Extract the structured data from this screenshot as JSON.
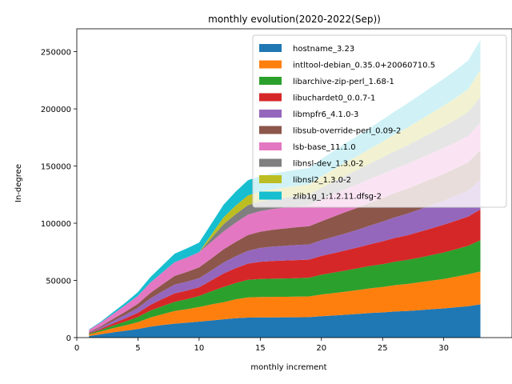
{
  "chart_data": {
    "type": "area",
    "stacked": true,
    "title": "monthly evolution(2020-2022(Sep))",
    "xlabel": "monthly increment",
    "ylabel": "In-degree",
    "xlim": [
      0,
      34.6
    ],
    "ylim": [
      0,
      270000
    ],
    "xticks": [
      0,
      5,
      10,
      15,
      20,
      25,
      30
    ],
    "yticks": [
      0,
      50000,
      100000,
      150000,
      200000,
      250000
    ],
    "grid": false,
    "legend_position": "top-right",
    "x": [
      1,
      2,
      3,
      4,
      5,
      6,
      7,
      8,
      9,
      10,
      11,
      12,
      13,
      14,
      15,
      16,
      17,
      18,
      19,
      20,
      21,
      22,
      23,
      24,
      25,
      26,
      27,
      28,
      29,
      30,
      31,
      32,
      33
    ],
    "series": [
      {
        "name": "hostname_3.23",
        "color": "#1f77b4",
        "values": [
          1400,
          3000,
          4600,
          6000,
          7500,
          9500,
          11000,
          12200,
          13000,
          14000,
          15000,
          16000,
          17000,
          17500,
          17700,
          17700,
          17800,
          17800,
          17900,
          18700,
          19300,
          20000,
          20700,
          21500,
          22000,
          22800,
          23300,
          24000,
          24800,
          25500,
          26500,
          27500,
          29000
        ]
      },
      {
        "name": "intltool-debian_0.35.0+20060710.5",
        "color": "#ff7f0e",
        "values": [
          1300,
          2500,
          3700,
          4800,
          6000,
          8000,
          9500,
          11000,
          11800,
          12700,
          14000,
          15000,
          16500,
          17700,
          17800,
          17900,
          17900,
          18000,
          18100,
          19000,
          19600,
          20200,
          20900,
          21600,
          22200,
          23000,
          23600,
          24300,
          25000,
          25800,
          26800,
          27800,
          28800
        ]
      },
      {
        "name": "libarchive-zip-perl_1.68-1",
        "color": "#2ca02c",
        "values": [
          700,
          1400,
          2400,
          3400,
          4500,
          6000,
          7000,
          8000,
          8800,
          9700,
          11500,
          13200,
          14300,
          15300,
          15700,
          15900,
          16000,
          16200,
          16400,
          17300,
          17900,
          18500,
          19100,
          19600,
          20000,
          20500,
          21000,
          21600,
          22300,
          23100,
          24000,
          25000,
          27300
        ]
      },
      {
        "name": "libuchardet0_0.0.7-1",
        "color": "#d62728",
        "values": [
          500,
          1000,
          1800,
          2700,
          3700,
          5000,
          6300,
          7500,
          7500,
          7600,
          9500,
          11800,
          13000,
          14200,
          15100,
          15500,
          15700,
          15800,
          15800,
          16400,
          17000,
          17600,
          18200,
          19000,
          20000,
          20800,
          21500,
          22500,
          23400,
          24300,
          24900,
          25500,
          26900
        ]
      },
      {
        "name": "libmpfr6_4.1.0-3",
        "color": "#9467bd",
        "values": [
          600,
          1200,
          2200,
          3300,
          4400,
          5600,
          6700,
          7700,
          7800,
          7900,
          8700,
          9700,
          10400,
          11200,
          12100,
          12600,
          12900,
          13200,
          13300,
          13700,
          14300,
          14900,
          15500,
          16300,
          17200,
          18000,
          18800,
          19600,
          20400,
          21100,
          21900,
          22800,
          26000
        ]
      },
      {
        "name": "libsub-override-perl_0.09-2",
        "color": "#8c564b",
        "values": [
          500,
          1000,
          1800,
          2600,
          3500,
          4800,
          6000,
          7500,
          8500,
          9500,
          10500,
          11500,
          12500,
          13800,
          14200,
          14700,
          15100,
          15500,
          15900,
          16600,
          17700,
          18700,
          19300,
          20000,
          20600,
          21200,
          21800,
          22400,
          22900,
          23400,
          24000,
          24600,
          26000
        ]
      },
      {
        "name": "lsb-base_11.1.0",
        "color": "#e377c2",
        "values": [
          1800,
          3300,
          4500,
          5800,
          7000,
          9000,
          10500,
          12000,
          12600,
          13200,
          14400,
          15600,
          16800,
          17800,
          18000,
          18100,
          18200,
          18200,
          18400,
          19100,
          19600,
          20000,
          20500,
          20800,
          21100,
          21400,
          21700,
          22000,
          22300,
          22600,
          22800,
          23200,
          24000
        ]
      },
      {
        "name": "libnsl-dev_1.3.0-2",
        "color": "#7f7f7f",
        "values": [
          0,
          0,
          0,
          0,
          0,
          0,
          0,
          0,
          0,
          0,
          3500,
          6400,
          7500,
          8300,
          8400,
          8600,
          8800,
          9000,
          9100,
          10200,
          11000,
          11800,
          12600,
          13500,
          14400,
          15300,
          16200,
          17100,
          18000,
          18900,
          19800,
          20800,
          22500
        ]
      },
      {
        "name": "libnsl2_1.3.0-2",
        "color": "#bcbd22",
        "values": [
          0,
          0,
          0,
          0,
          0,
          0,
          0,
          0,
          0,
          0,
          3000,
          6000,
          7500,
          8500,
          8600,
          8700,
          8800,
          9000,
          9100,
          10000,
          10800,
          11600,
          12300,
          13000,
          13800,
          14700,
          15600,
          16400,
          17300,
          18100,
          19000,
          20000,
          23500
        ]
      },
      {
        "name": "zlib1g_1:1.2.11.dfsg-2",
        "color": "#17becf",
        "values": [
          400,
          800,
          1500,
          2200,
          3200,
          4800,
          6000,
          7500,
          8000,
          8500,
          9500,
          11000,
          12200,
          13300,
          13500,
          13700,
          13900,
          14100,
          14300,
          15200,
          16000,
          16800,
          17600,
          18400,
          19300,
          20100,
          21000,
          21800,
          22700,
          23500,
          24300,
          25200,
          26000
        ]
      }
    ]
  }
}
